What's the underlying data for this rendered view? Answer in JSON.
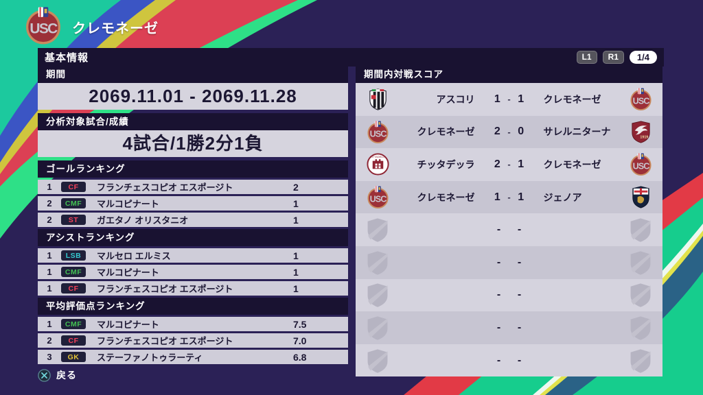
{
  "club": {
    "name": "クレモネーゼ",
    "logo": "cremonese"
  },
  "header": {
    "title": "基本情報",
    "l1_label": "L1",
    "r1_label": "R1",
    "page_indicator": "1/4"
  },
  "left": {
    "period_label": "期間",
    "period_value": "2069.11.01 - 2069.11.28",
    "record_label": "分析対象試合/成績",
    "record_value": "4試合/1勝2分1負",
    "sections": [
      {
        "title": "ゴールランキング",
        "rows": [
          {
            "rank": "1",
            "pos": "CF",
            "name": "フランチェスコピオ エスポージト",
            "value": "2"
          },
          {
            "rank": "2",
            "pos": "CMF",
            "name": "マルコピナート",
            "value": "1"
          },
          {
            "rank": "2",
            "pos": "ST",
            "name": "ガエタノ オリスタニオ",
            "value": "1"
          }
        ]
      },
      {
        "title": "アシストランキング",
        "rows": [
          {
            "rank": "1",
            "pos": "LSB",
            "name": "マルセロ エルミス",
            "value": "1"
          },
          {
            "rank": "1",
            "pos": "CMF",
            "name": "マルコピナート",
            "value": "1"
          },
          {
            "rank": "1",
            "pos": "CF",
            "name": "フランチェスコピオ エスポージト",
            "value": "1"
          }
        ]
      },
      {
        "title": "平均評価点ランキング",
        "rows": [
          {
            "rank": "1",
            "pos": "CMF",
            "name": "マルコピナート",
            "value": "7.5"
          },
          {
            "rank": "2",
            "pos": "CF",
            "name": "フランチェスコピオ エスポージト",
            "value": "7.0"
          },
          {
            "rank": "3",
            "pos": "GK",
            "name": "ステーファノトゥラーティ",
            "value": "6.8"
          }
        ]
      }
    ]
  },
  "right": {
    "title": "期間内対戦スコア",
    "matches": [
      {
        "home": "アスコリ",
        "home_score": "1",
        "away_score": "1",
        "away": "クレモネーゼ",
        "home_logo": "ascoli",
        "away_logo": "cremonese"
      },
      {
        "home": "クレモネーゼ",
        "home_score": "2",
        "away_score": "0",
        "away": "サレルニターナ",
        "home_logo": "cremonese",
        "away_logo": "salernitana"
      },
      {
        "home": "チッタデッラ",
        "home_score": "2",
        "away_score": "1",
        "away": "クレモネーゼ",
        "home_logo": "cittadella",
        "away_logo": "cremonese"
      },
      {
        "home": "クレモネーゼ",
        "home_score": "1",
        "away_score": "1",
        "away": "ジェノア",
        "home_logo": "cremonese",
        "away_logo": "genoa"
      },
      {
        "home": "",
        "home_score": "-",
        "away_score": "-",
        "away": "",
        "home_logo": "placeholder",
        "away_logo": "placeholder"
      },
      {
        "home": "",
        "home_score": "-",
        "away_score": "-",
        "away": "",
        "home_logo": "placeholder",
        "away_logo": "placeholder"
      },
      {
        "home": "",
        "home_score": "-",
        "away_score": "-",
        "away": "",
        "home_logo": "placeholder",
        "away_logo": "placeholder"
      },
      {
        "home": "",
        "home_score": "-",
        "away_score": "-",
        "away": "",
        "home_logo": "placeholder",
        "away_logo": "placeholder"
      },
      {
        "home": "",
        "home_score": "-",
        "away_score": "-",
        "away": "",
        "home_logo": "placeholder",
        "away_logo": "placeholder"
      }
    ]
  },
  "footer": {
    "back_label": "戻る",
    "back_icon": "cross-button-icon"
  },
  "icons": {
    "empty_slot": "shield-placeholder-icon",
    "club_badge": "club-crest-icon"
  },
  "colors": {
    "background_purple": "#2b2156",
    "bar_dark": "#191231",
    "row_light": "#d5d3de",
    "row_alt": "#c7c5d2",
    "accent_teal": "#1cc99e",
    "accent_green": "#16cd8d",
    "accent_red": "#e23a46",
    "positions": {
      "CF": "#f5415a",
      "CMF": "#43c153",
      "ST": "#f5415a",
      "LSB": "#35c8cf",
      "GK": "#e3c437"
    }
  }
}
